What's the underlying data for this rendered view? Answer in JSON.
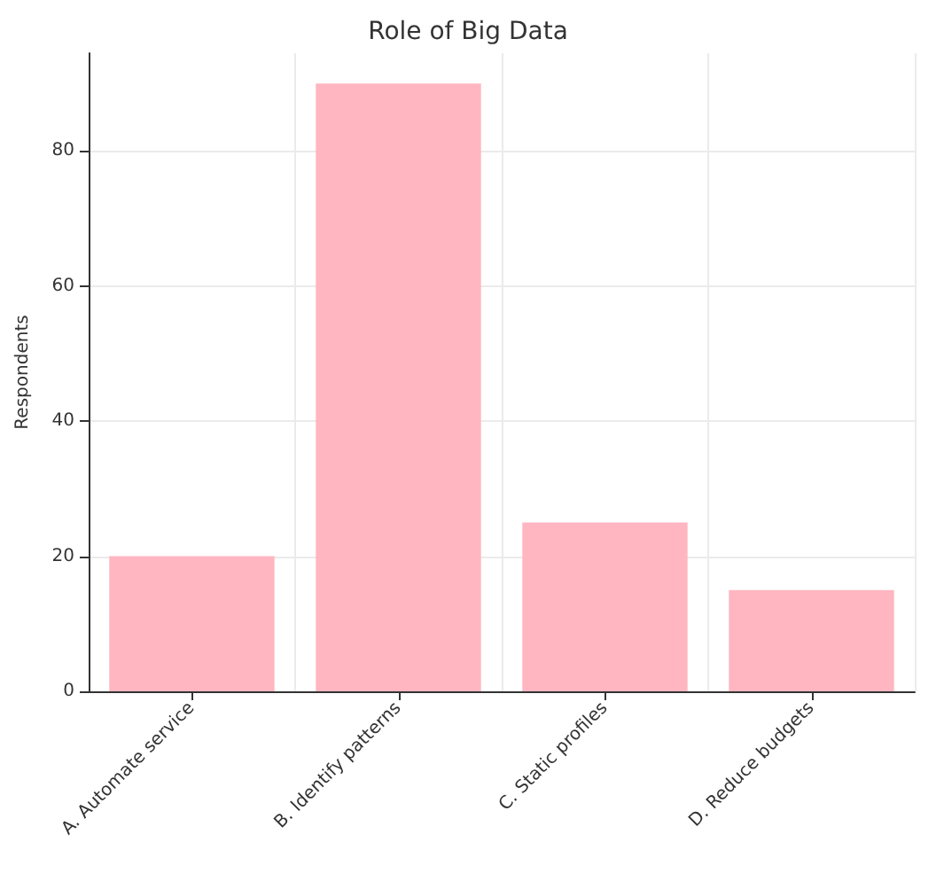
{
  "chart_data": {
    "type": "bar",
    "title": "Role of Big Data",
    "ylabel": "Respondents",
    "categories": [
      "A. Automate service",
      "B. Identify patterns",
      "C. Static profiles",
      "D. Reduce budgets"
    ],
    "values": [
      20,
      90,
      25,
      15
    ],
    "color": "#ffb6c1",
    "ylim": [
      0,
      94.5
    ],
    "yticks": [
      0,
      20,
      40,
      60,
      80
    ],
    "grid": true
  }
}
